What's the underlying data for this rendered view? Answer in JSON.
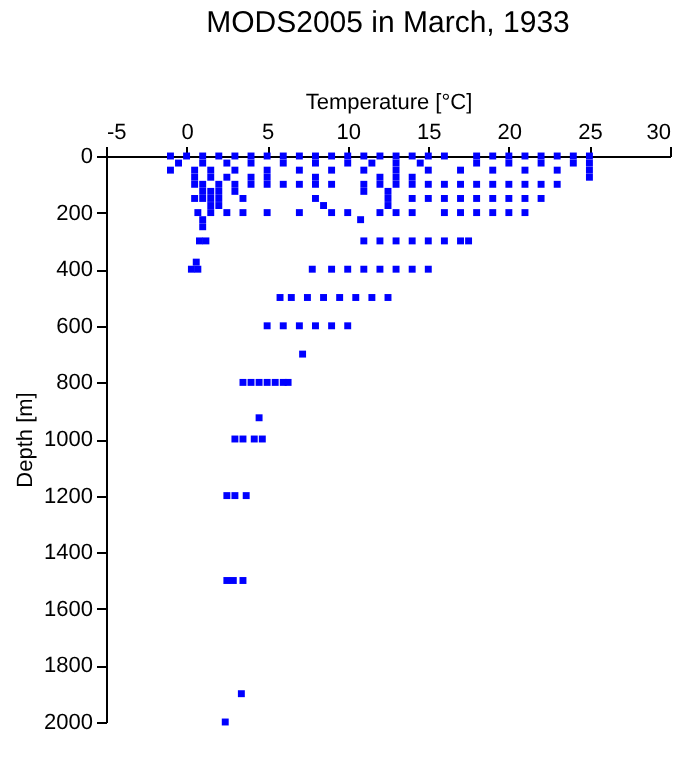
{
  "chart_data": {
    "type": "scatter",
    "title": "MODS2005 in March, 1933",
    "xlabel": "Temperature [°C]",
    "ylabel": "Depth [m]",
    "xlim": [
      -5,
      30
    ],
    "xticks": [
      -5,
      0,
      5,
      10,
      15,
      20,
      25,
      30
    ],
    "ylim": [
      2000,
      0
    ],
    "yticks": [
      0,
      200,
      400,
      600,
      800,
      1000,
      1200,
      1400,
      1600,
      1800,
      2000
    ],
    "grid": false,
    "marker": "square",
    "series": [
      {
        "color": "#0000ff",
        "x": [
          -1,
          0,
          1,
          2,
          3,
          4,
          5,
          6,
          7,
          8,
          9,
          10,
          11,
          12,
          13,
          14,
          15,
          16,
          18,
          19,
          20,
          21,
          22,
          23,
          24,
          25,
          -0.5,
          1,
          2.5,
          4,
          6,
          8,
          10,
          11.5,
          13,
          14.5,
          18,
          20,
          22,
          24,
          25,
          -1,
          0.5,
          1.5,
          3,
          5,
          7,
          9,
          11,
          13,
          15,
          17,
          19,
          21,
          23,
          25,
          0.5,
          1.5,
          2.5,
          4,
          5,
          8,
          12,
          13,
          14,
          25,
          0.5,
          1,
          2,
          3,
          4,
          5,
          6,
          7,
          8,
          9,
          11,
          12,
          13,
          14,
          15,
          16,
          17,
          18,
          19,
          20,
          21,
          22,
          23,
          1,
          1.5,
          2,
          3,
          11,
          12.5,
          0.5,
          1,
          1.5,
          2,
          3.5,
          8,
          12.5,
          14,
          15,
          16,
          17,
          18,
          19,
          20,
          21,
          22,
          1.5,
          2,
          8.5,
          12.5,
          0.7,
          1.5,
          2.5,
          3.5,
          5,
          7,
          9,
          10,
          12,
          13,
          14,
          16,
          17,
          18,
          19,
          20,
          21,
          1,
          10.8,
          1,
          0.8,
          1.2,
          11,
          12,
          13,
          14,
          15,
          16,
          17,
          17.5,
          0.6,
          0.3,
          0.7,
          7.8,
          9,
          10,
          11,
          12,
          13,
          14,
          15,
          5.8,
          6.5,
          7.5,
          8.5,
          9.5,
          10.5,
          11.5,
          12.5,
          5,
          6,
          7,
          8,
          9,
          10,
          7.2,
          3.5,
          4,
          4.5,
          5,
          5.5,
          6,
          6.3,
          4.5,
          3,
          3.5,
          4.2,
          4.7,
          2.5,
          3,
          3.7,
          2.5,
          2.9,
          3.5,
          3.4,
          2.4
        ],
        "values": [
          0,
          0,
          0,
          0,
          0,
          0,
          0,
          0,
          0,
          0,
          0,
          0,
          0,
          0,
          0,
          0,
          0,
          0,
          0,
          0,
          0,
          0,
          0,
          0,
          0,
          0,
          25,
          25,
          25,
          25,
          25,
          25,
          25,
          25,
          25,
          25,
          25,
          25,
          25,
          25,
          25,
          50,
          50,
          50,
          50,
          50,
          50,
          50,
          50,
          50,
          50,
          50,
          50,
          50,
          50,
          50,
          75,
          75,
          75,
          75,
          75,
          75,
          75,
          75,
          75,
          75,
          100,
          100,
          100,
          100,
          100,
          100,
          100,
          100,
          100,
          100,
          100,
          100,
          100,
          100,
          100,
          100,
          100,
          100,
          100,
          100,
          100,
          100,
          100,
          125,
          125,
          125,
          125,
          125,
          125,
          150,
          150,
          150,
          150,
          150,
          150,
          150,
          150,
          150,
          150,
          150,
          150,
          150,
          150,
          150,
          150,
          175,
          175,
          175,
          175,
          200,
          200,
          200,
          200,
          200,
          200,
          200,
          200,
          200,
          200,
          200,
          200,
          200,
          200,
          200,
          200,
          200,
          225,
          225,
          250,
          300,
          300,
          300,
          300,
          300,
          300,
          300,
          300,
          300,
          300,
          375,
          400,
          400,
          400,
          400,
          400,
          400,
          400,
          400,
          400,
          400,
          500,
          500,
          500,
          500,
          500,
          500,
          500,
          500,
          600,
          600,
          600,
          600,
          600,
          600,
          700,
          800,
          800,
          800,
          800,
          800,
          800,
          800,
          925,
          1000,
          1000,
          1000,
          1000,
          1200,
          1200,
          1200,
          1500,
          1500,
          1500,
          1900,
          2000
        ]
      }
    ]
  }
}
